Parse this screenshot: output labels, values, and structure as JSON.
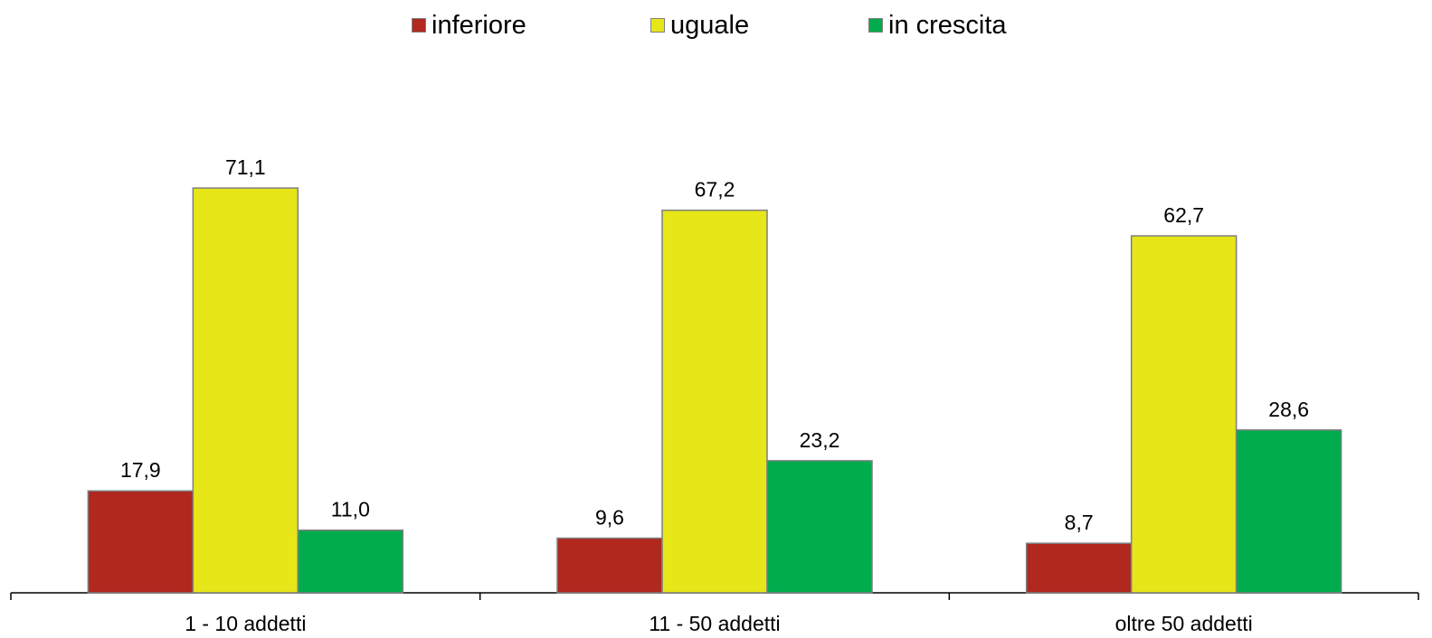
{
  "chart_data": {
    "type": "bar",
    "categories": [
      "1 - 10 addetti",
      "11 - 50 addetti",
      "oltre 50 addetti"
    ],
    "series": [
      {
        "name": "inferiore",
        "color": "#b0281e",
        "values": [
          17.9,
          9.6,
          8.7
        ],
        "labels": [
          "17,9",
          "9,6",
          "8,7"
        ]
      },
      {
        "name": "uguale",
        "color": "#e6e619",
        "values": [
          71.1,
          67.2,
          62.7
        ],
        "labels": [
          "71,1",
          "67,2",
          "62,7"
        ]
      },
      {
        "name": "in crescita",
        "color": "#00ac4c",
        "values": [
          11.0,
          23.2,
          28.6
        ],
        "labels": [
          "11,0",
          "23,2",
          "28,6"
        ]
      }
    ],
    "ylim": [
      0,
      100
    ],
    "grid": false,
    "legend_position": "top-center",
    "title": "",
    "xlabel": "",
    "ylabel": ""
  }
}
